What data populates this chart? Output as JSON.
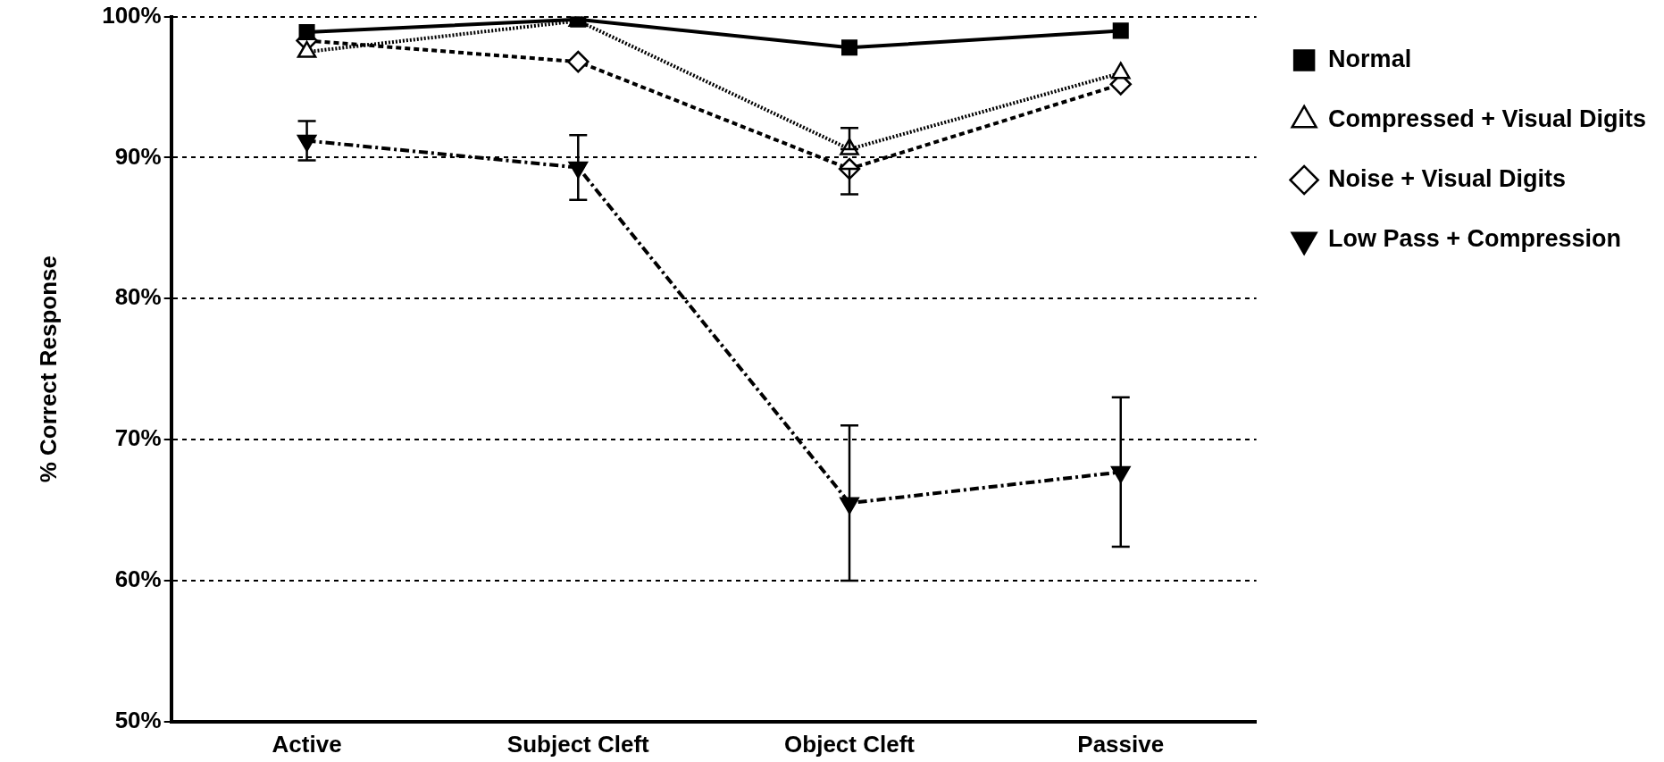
{
  "chart_data": {
    "type": "line",
    "ylabel": "% Correct Response",
    "categories": [
      "Active",
      "Subject Cleft",
      "Object Cleft",
      "Passive"
    ],
    "ylim": [
      50,
      100
    ],
    "yticks": [
      {
        "value": 50,
        "label": "50%"
      },
      {
        "value": 60,
        "label": "60%"
      },
      {
        "value": 70,
        "label": "70%"
      },
      {
        "value": 80,
        "label": "80%"
      },
      {
        "value": 90,
        "label": "90%"
      },
      {
        "value": 100,
        "label": "100%"
      }
    ],
    "grid": "y",
    "legend": "right",
    "series": [
      {
        "name": "Normal",
        "color": "#000000",
        "marker": "square",
        "line_style": "solid",
        "values": [
          98.9,
          99.8,
          97.8,
          99.0
        ]
      },
      {
        "name": "Compressed + Visual Digits",
        "color": "#000000",
        "marker": "triangle",
        "line_style": "dotted",
        "values": [
          97.5,
          99.7,
          90.6,
          96.0
        ],
        "errors": [
          null,
          null,
          [
            90.6,
            92.1
          ],
          null
        ]
      },
      {
        "name": "Noise + Visual Digits",
        "color": "#000000",
        "marker": "diamond",
        "line_style": "dashed",
        "values": [
          98.3,
          96.8,
          89.2,
          95.2
        ],
        "errors": [
          null,
          null,
          [
            87.4,
            89.2
          ],
          null
        ]
      },
      {
        "name": "Low Pass + Compression",
        "color": "#000000",
        "marker": "triangle_down",
        "line_style": "dashdot",
        "values": [
          91.2,
          89.3,
          65.5,
          67.7
        ],
        "errors": [
          1.4,
          2.3,
          5.5,
          5.3
        ]
      }
    ]
  }
}
